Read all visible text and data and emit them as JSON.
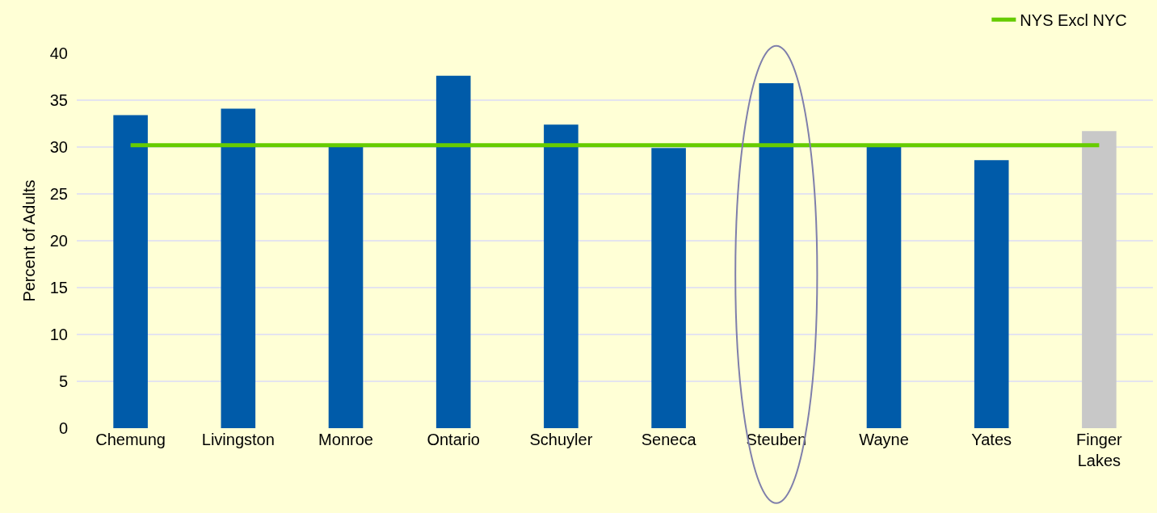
{
  "chart_data": {
    "type": "bar",
    "ylabel": "Percent of Adults",
    "categories": [
      "Chemung",
      "Livingston",
      "Monroe",
      "Ontario",
      "Schuyler",
      "Seneca",
      "Steuben",
      "Wayne",
      "Yates",
      "Finger Lakes"
    ],
    "series": [
      {
        "values": [
          33.4,
          34.1,
          30.0,
          37.6,
          32.4,
          29.9,
          36.8,
          30.0,
          28.6,
          31.7
        ],
        "colors": [
          "#005ba9",
          "#005ba9",
          "#005ba9",
          "#005ba9",
          "#005ba9",
          "#005ba9",
          "#005ba9",
          "#005ba9",
          "#005ba9",
          "#c8c8c8"
        ]
      },
      {
        "type": "line",
        "name": "NYS Excl NYC",
        "color": "#66cc00",
        "values": [
          30.2,
          30.2,
          30.2,
          30.2,
          30.2,
          30.2,
          30.2,
          30.2,
          30.2,
          30.2
        ]
      }
    ],
    "ylim": [
      0,
      40
    ],
    "yticks": [
      0,
      5,
      10,
      15,
      20,
      25,
      30,
      35,
      40
    ],
    "grid": "y",
    "legend": "top right",
    "marker": "none",
    "line_style": "solid"
  }
}
